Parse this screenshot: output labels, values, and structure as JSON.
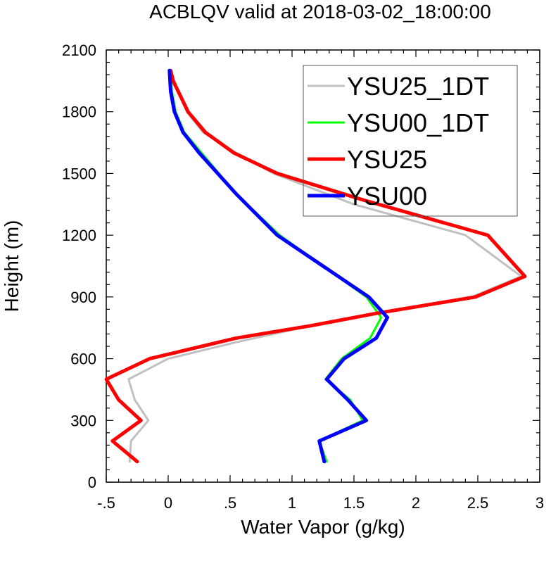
{
  "chart_data": {
    "type": "line",
    "title": "ACBLQV valid at 2018-03-02_18:00:00",
    "xlabel": "Water Vapor (g/kg)",
    "ylabel": "Height (m)",
    "xlim": [
      -0.5,
      3
    ],
    "ylim": [
      0,
      2100
    ],
    "xticks": [
      -0.5,
      0,
      0.5,
      1,
      1.5,
      2,
      2.5,
      3
    ],
    "xtick_labels": [
      "-.5",
      "0",
      ".5",
      "1",
      "1.5",
      "2",
      "2.5",
      "3"
    ],
    "yticks": [
      0,
      300,
      600,
      900,
      1200,
      1500,
      1800,
      2100
    ],
    "ytick_labels": [
      "0",
      "300",
      "600",
      "900",
      "1200",
      "1500",
      "1800",
      "2100"
    ],
    "grid": false,
    "legend_position": "top-right",
    "series": [
      {
        "name": "YSU25_1DT",
        "color": "#c0c0c0",
        "x": [
          0.02,
          0.05,
          0.08,
          0.15,
          0.28,
          0.55,
          0.85,
          1.5,
          2.4,
          2.85,
          2.45,
          1.65,
          1.15,
          0.55,
          0,
          -0.32,
          -0.27,
          -0.16,
          -0.3,
          -0.31
        ],
        "y": [
          2000,
          1950,
          1900,
          1800,
          1700,
          1600,
          1500,
          1350,
          1200,
          1000,
          900,
          820,
          760,
          680,
          600,
          500,
          400,
          300,
          200,
          100
        ]
      },
      {
        "name": "YSU00_1DT",
        "color": "#00ff00",
        "x": [
          0.02,
          0.03,
          0.06,
          0.13,
          0.27,
          0.55,
          0.9,
          1.25,
          1.6,
          1.72,
          1.63,
          1.4,
          1.27,
          1.37,
          1.47,
          1.57,
          1.22,
          1.28
        ],
        "y": [
          2000,
          1900,
          1800,
          1700,
          1600,
          1400,
          1200,
          1050,
          900,
          800,
          700,
          600,
          500,
          450,
          400,
          300,
          200,
          100
        ]
      },
      {
        "name": "YSU25",
        "color": "#ff0000",
        "x": [
          0.02,
          0.04,
          0.08,
          0.16,
          0.3,
          0.53,
          0.88,
          1.58,
          2.58,
          2.88,
          2.48,
          1.68,
          1.15,
          0.55,
          -0.15,
          -0.5,
          -0.4,
          -0.22,
          -0.45,
          -0.25
        ],
        "y": [
          2000,
          1950,
          1900,
          1800,
          1700,
          1600,
          1500,
          1370,
          1200,
          1000,
          900,
          820,
          760,
          700,
          600,
          500,
          400,
          300,
          200,
          100
        ]
      },
      {
        "name": "YSU00",
        "color": "#0000ff",
        "x": [
          0.01,
          0.02,
          0.05,
          0.12,
          0.25,
          0.55,
          0.88,
          1.25,
          1.62,
          1.77,
          1.68,
          1.42,
          1.28,
          1.45,
          1.6,
          1.22,
          1.26
        ],
        "y": [
          2000,
          1900,
          1800,
          1700,
          1600,
          1400,
          1200,
          1050,
          900,
          800,
          700,
          600,
          500,
          400,
          300,
          200,
          100
        ]
      }
    ]
  }
}
